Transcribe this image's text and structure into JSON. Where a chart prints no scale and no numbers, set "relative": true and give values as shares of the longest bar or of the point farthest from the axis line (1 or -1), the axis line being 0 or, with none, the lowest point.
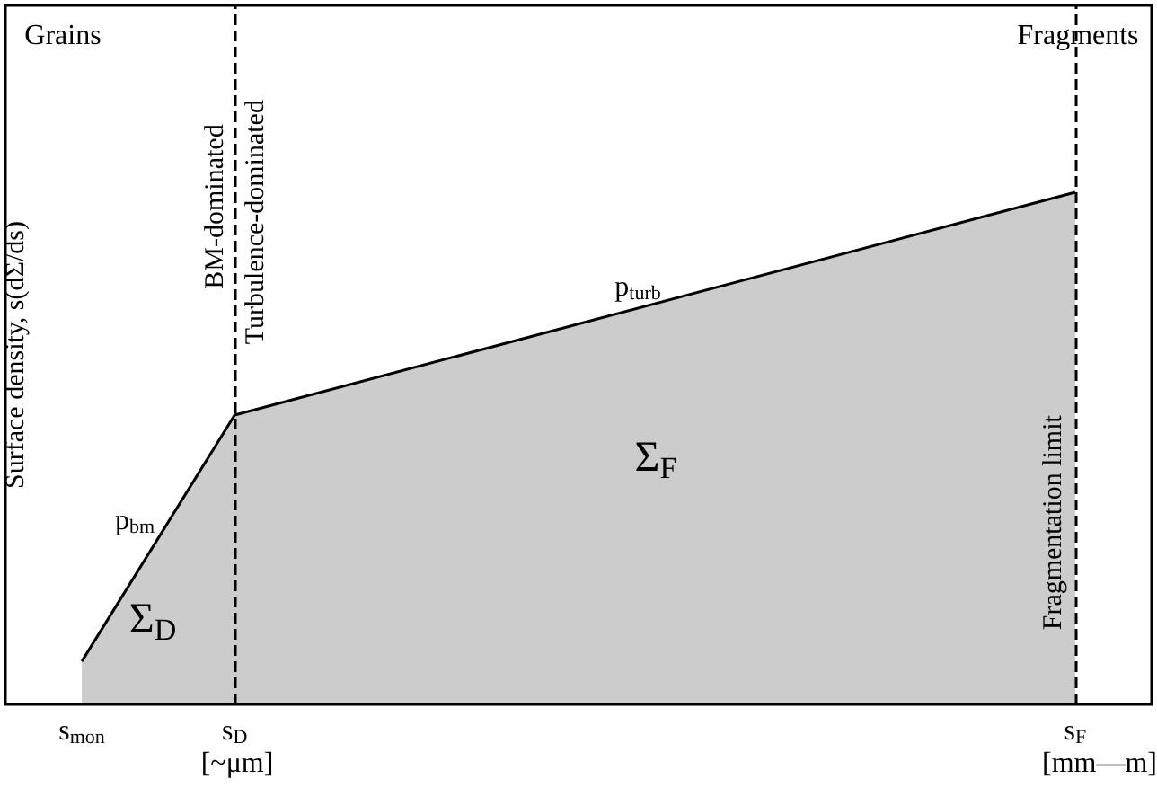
{
  "chart_data": {
    "type": "area",
    "relative": true,
    "ylabel": "Surface density, s(dΣ/ds)",
    "categories": [
      null,
      "s$_{mon}$",
      null,
      "s$_{D}$",
      null,
      null,
      null,
      null,
      null,
      null,
      null,
      null,
      null,
      null,
      "s$_{F}$",
      null
    ],
    "series": [
      {
        "color": "#000000",
        "values": [
          null,
          0.084,
          null,
          0.565,
          null,
          null,
          null,
          null,
          null,
          null,
          null,
          null,
          null,
          null,
          1,
          null
        ]
      }
    ],
    "ref_lines": [
      {
        "axis": "x",
        "value": "s$_{D}$",
        "label": "Turbulence-dominated",
        "line_style": "dashed",
        "color": "#000000"
      },
      {
        "axis": "x",
        "value": "s$_{F}$",
        "label": "Fragmentation limit",
        "line_style": "dashed",
        "color": "#000000"
      }
    ],
    "annotations": [
      "BM-dominated",
      "Grains",
      "Fragments",
      "p$_{bm}$",
      "p$_{turb}$",
      "Σ$_{D}$",
      "Σ$_{F}$",
      "[~μm]",
      "[mm—m]"
    ],
    "grid": false,
    "marker": "none",
    "line_style": "solid"
  }
}
